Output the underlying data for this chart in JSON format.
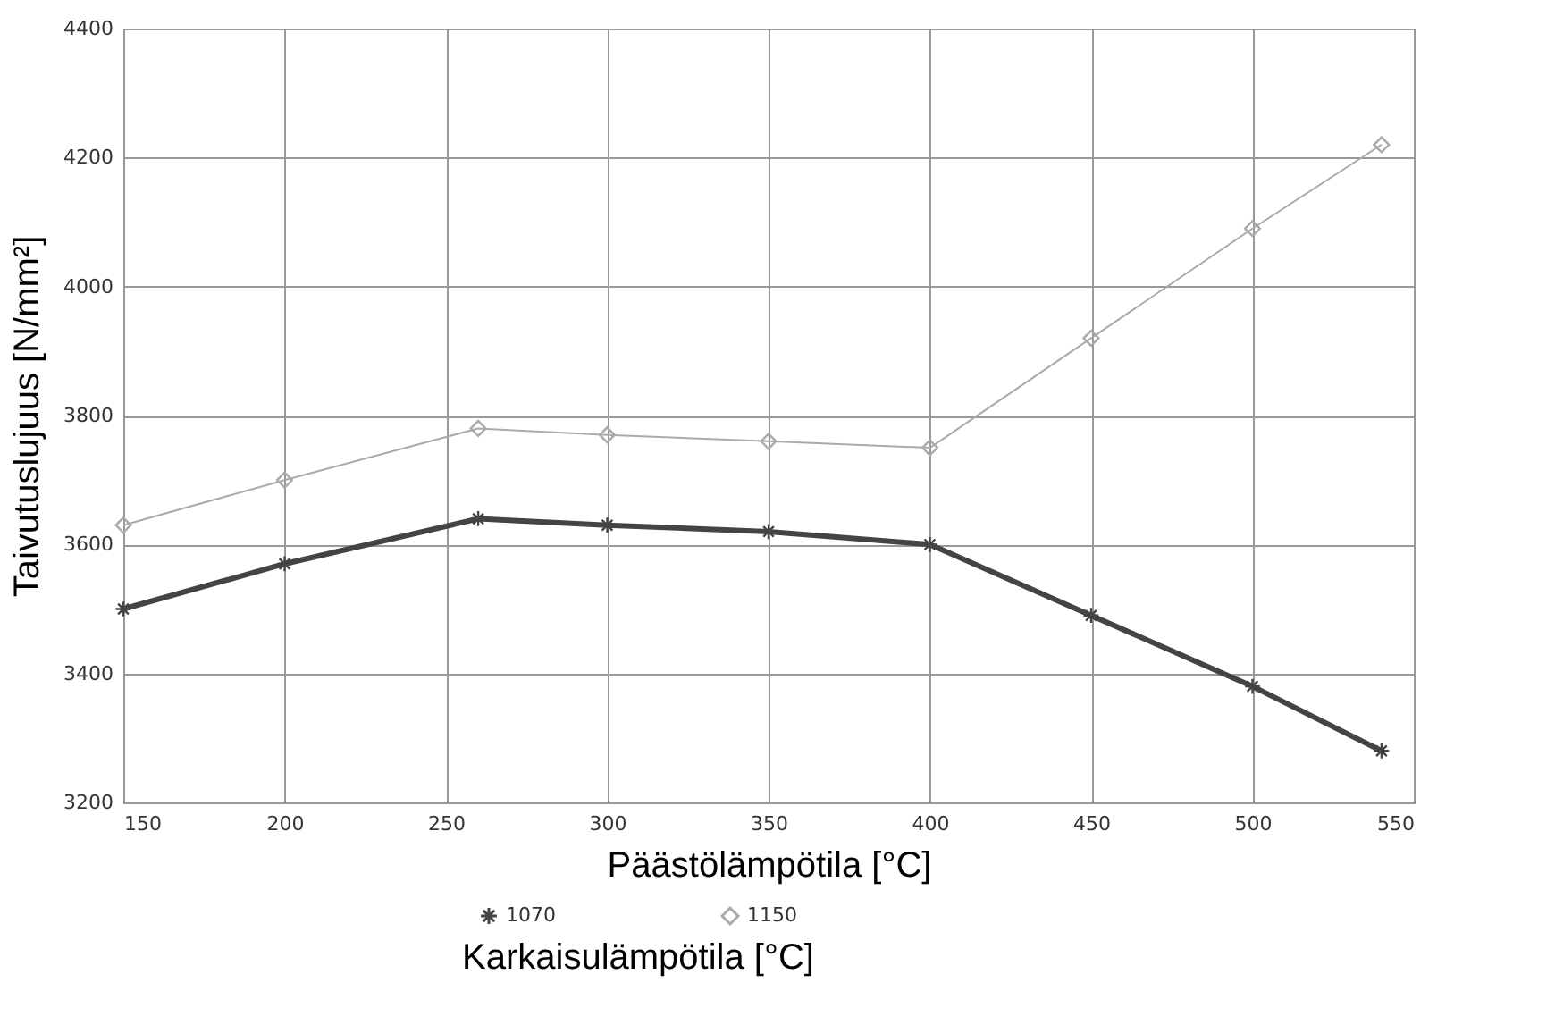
{
  "chart_data": {
    "type": "line",
    "xlabel": "Päästölämpötila [°C]",
    "ylabel": "Taivutuslujuus [N/mm²]",
    "legend_title": "Karkaisulämpötila [°C]",
    "legend": "bottom",
    "grid": true,
    "x": [
      150,
      200,
      260,
      300,
      350,
      400,
      450,
      500,
      540
    ],
    "xlim": [
      150,
      550
    ],
    "xticks": [
      150,
      200,
      250,
      300,
      350,
      400,
      450,
      500,
      550
    ],
    "ylim": [
      3200,
      4400
    ],
    "yticks": [
      3200,
      3400,
      3600,
      3800,
      4000,
      4200,
      4400
    ],
    "series": [
      {
        "name": "1070",
        "color": "#444444",
        "marker": "cross",
        "values": [
          3500,
          3570,
          3640,
          3630,
          3620,
          3600,
          3490,
          3380,
          3280
        ]
      },
      {
        "name": "1150",
        "color": "#aaaaaa",
        "marker": "diamond",
        "values": [
          3630,
          3700,
          3780,
          3770,
          3760,
          3750,
          3920,
          4090,
          4220
        ]
      }
    ]
  }
}
